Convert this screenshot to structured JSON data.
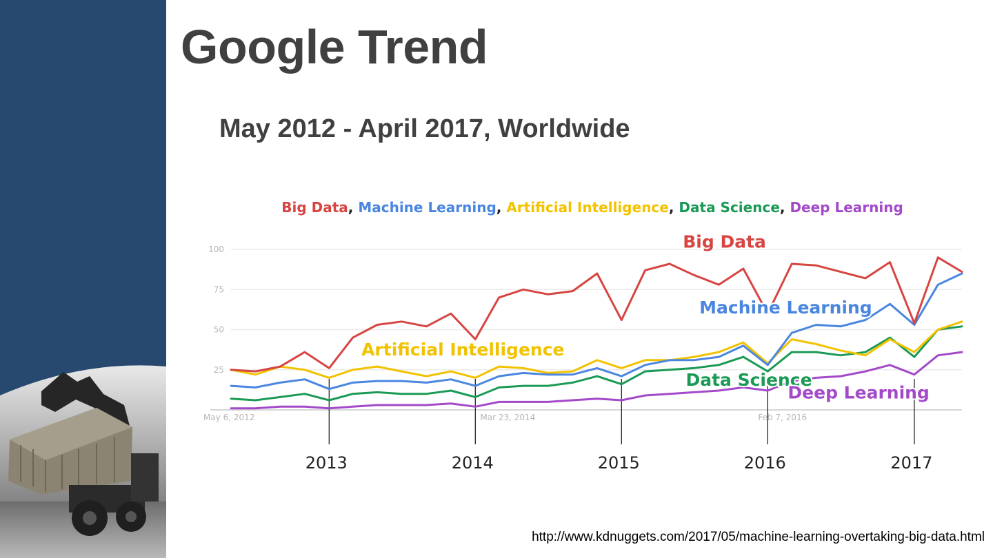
{
  "slide": {
    "title": "Google Trend",
    "subtitle": "May 2012 - April 2017, Worldwide",
    "source_url": "http://www.kdnuggets.com/2017/05/machine-learning-overtaking-big-data.html"
  },
  "colors": {
    "sidebar": "#27496f",
    "text": "#404040",
    "big_data": "#d64541",
    "machine_learning": "#4a86e0",
    "artificial_intelligence": "#f2c200",
    "data_science": "#1a9a55",
    "deep_learning": "#a349c9"
  },
  "chart_data": {
    "type": "line",
    "title": "",
    "xlabel": "",
    "ylabel": "",
    "ylim": [
      0,
      100
    ],
    "grid": true,
    "y_ticks": [
      25,
      50,
      75,
      100
    ],
    "x_tick_labels": [
      "May 6, 2012",
      "Mar 23, 2014",
      "Feb 7, 2016"
    ],
    "x_tick_dates": [
      "2012-05-06",
      "2014-03-23",
      "2016-02-07"
    ],
    "year_markers": [
      {
        "label": "2013",
        "date": "2013-01-01"
      },
      {
        "label": "2014",
        "date": "2014-01-01"
      },
      {
        "label": "2015",
        "date": "2015-01-01"
      },
      {
        "label": "2016",
        "date": "2016-01-01"
      },
      {
        "label": "2017",
        "date": "2017-01-01"
      }
    ],
    "legend": [
      {
        "text": "Big Data",
        "key": "big_data"
      },
      {
        "text": "Machine Learning",
        "key": "machine_learning"
      },
      {
        "text": "Artificial Intelligence",
        "key": "artificial_intelligence"
      },
      {
        "text": "Data Science",
        "key": "data_science"
      },
      {
        "text": "Deep Learning",
        "key": "deep_learning"
      }
    ],
    "x": [
      "2012-05-01",
      "2012-07-01",
      "2012-09-01",
      "2012-11-01",
      "2013-01-01",
      "2013-03-01",
      "2013-05-01",
      "2013-07-01",
      "2013-09-01",
      "2013-11-01",
      "2014-01-01",
      "2014-03-01",
      "2014-05-01",
      "2014-07-01",
      "2014-09-01",
      "2014-11-01",
      "2015-01-01",
      "2015-03-01",
      "2015-05-01",
      "2015-07-01",
      "2015-09-01",
      "2015-11-01",
      "2016-01-01",
      "2016-03-01",
      "2016-05-01",
      "2016-07-01",
      "2016-09-01",
      "2016-11-01",
      "2017-01-01",
      "2017-03-01",
      "2017-04-30"
    ],
    "series": [
      {
        "name": "Big Data",
        "key": "big_data",
        "values": [
          25,
          24,
          27,
          36,
          26,
          45,
          53,
          55,
          52,
          60,
          44,
          70,
          75,
          72,
          74,
          85,
          56,
          87,
          91,
          84,
          78,
          88,
          60,
          91,
          90,
          86,
          82,
          92,
          54,
          95,
          86
        ]
      },
      {
        "name": "Machine Learning",
        "key": "machine_learning",
        "values": [
          15,
          14,
          17,
          19,
          13,
          17,
          18,
          18,
          17,
          19,
          15,
          21,
          23,
          22,
          22,
          26,
          21,
          28,
          31,
          31,
          33,
          40,
          28,
          48,
          53,
          52,
          56,
          66,
          53,
          78,
          85
        ]
      },
      {
        "name": "Artificial Intelligence",
        "key": "artificial_intelligence",
        "values": [
          25,
          22,
          27,
          25,
          20,
          25,
          27,
          24,
          21,
          24,
          20,
          27,
          26,
          23,
          24,
          31,
          26,
          31,
          31,
          33,
          36,
          42,
          29,
          44,
          41,
          37,
          34,
          44,
          36,
          50,
          55
        ]
      },
      {
        "name": "Data Science",
        "key": "data_science",
        "values": [
          7,
          6,
          8,
          10,
          6,
          10,
          11,
          10,
          10,
          12,
          8,
          14,
          15,
          15,
          17,
          21,
          16,
          24,
          25,
          26,
          28,
          33,
          24,
          36,
          36,
          34,
          36,
          45,
          33,
          50,
          52
        ]
      },
      {
        "name": "Deep Learning",
        "key": "deep_learning",
        "values": [
          1,
          1,
          2,
          2,
          1,
          2,
          3,
          3,
          3,
          4,
          2,
          5,
          5,
          5,
          6,
          7,
          6,
          9,
          10,
          11,
          12,
          14,
          12,
          18,
          20,
          21,
          24,
          28,
          22,
          34,
          36
        ]
      }
    ],
    "annotations": [
      {
        "text": "Big Data",
        "key": "big_data",
        "x": "2015-09-15",
        "y": 101
      },
      {
        "text": "Machine Learning",
        "key": "machine_learning",
        "x": "2016-02-15",
        "y": 60
      },
      {
        "text": "Artificial Intelligence",
        "key": "artificial_intelligence",
        "x": "2013-12-01",
        "y": 34
      },
      {
        "text": "Data Science",
        "key": "data_science",
        "x": "2015-11-15",
        "y": 15
      },
      {
        "text": "Deep Learning",
        "key": "deep_learning",
        "x": "2016-08-15",
        "y": 7
      }
    ]
  }
}
